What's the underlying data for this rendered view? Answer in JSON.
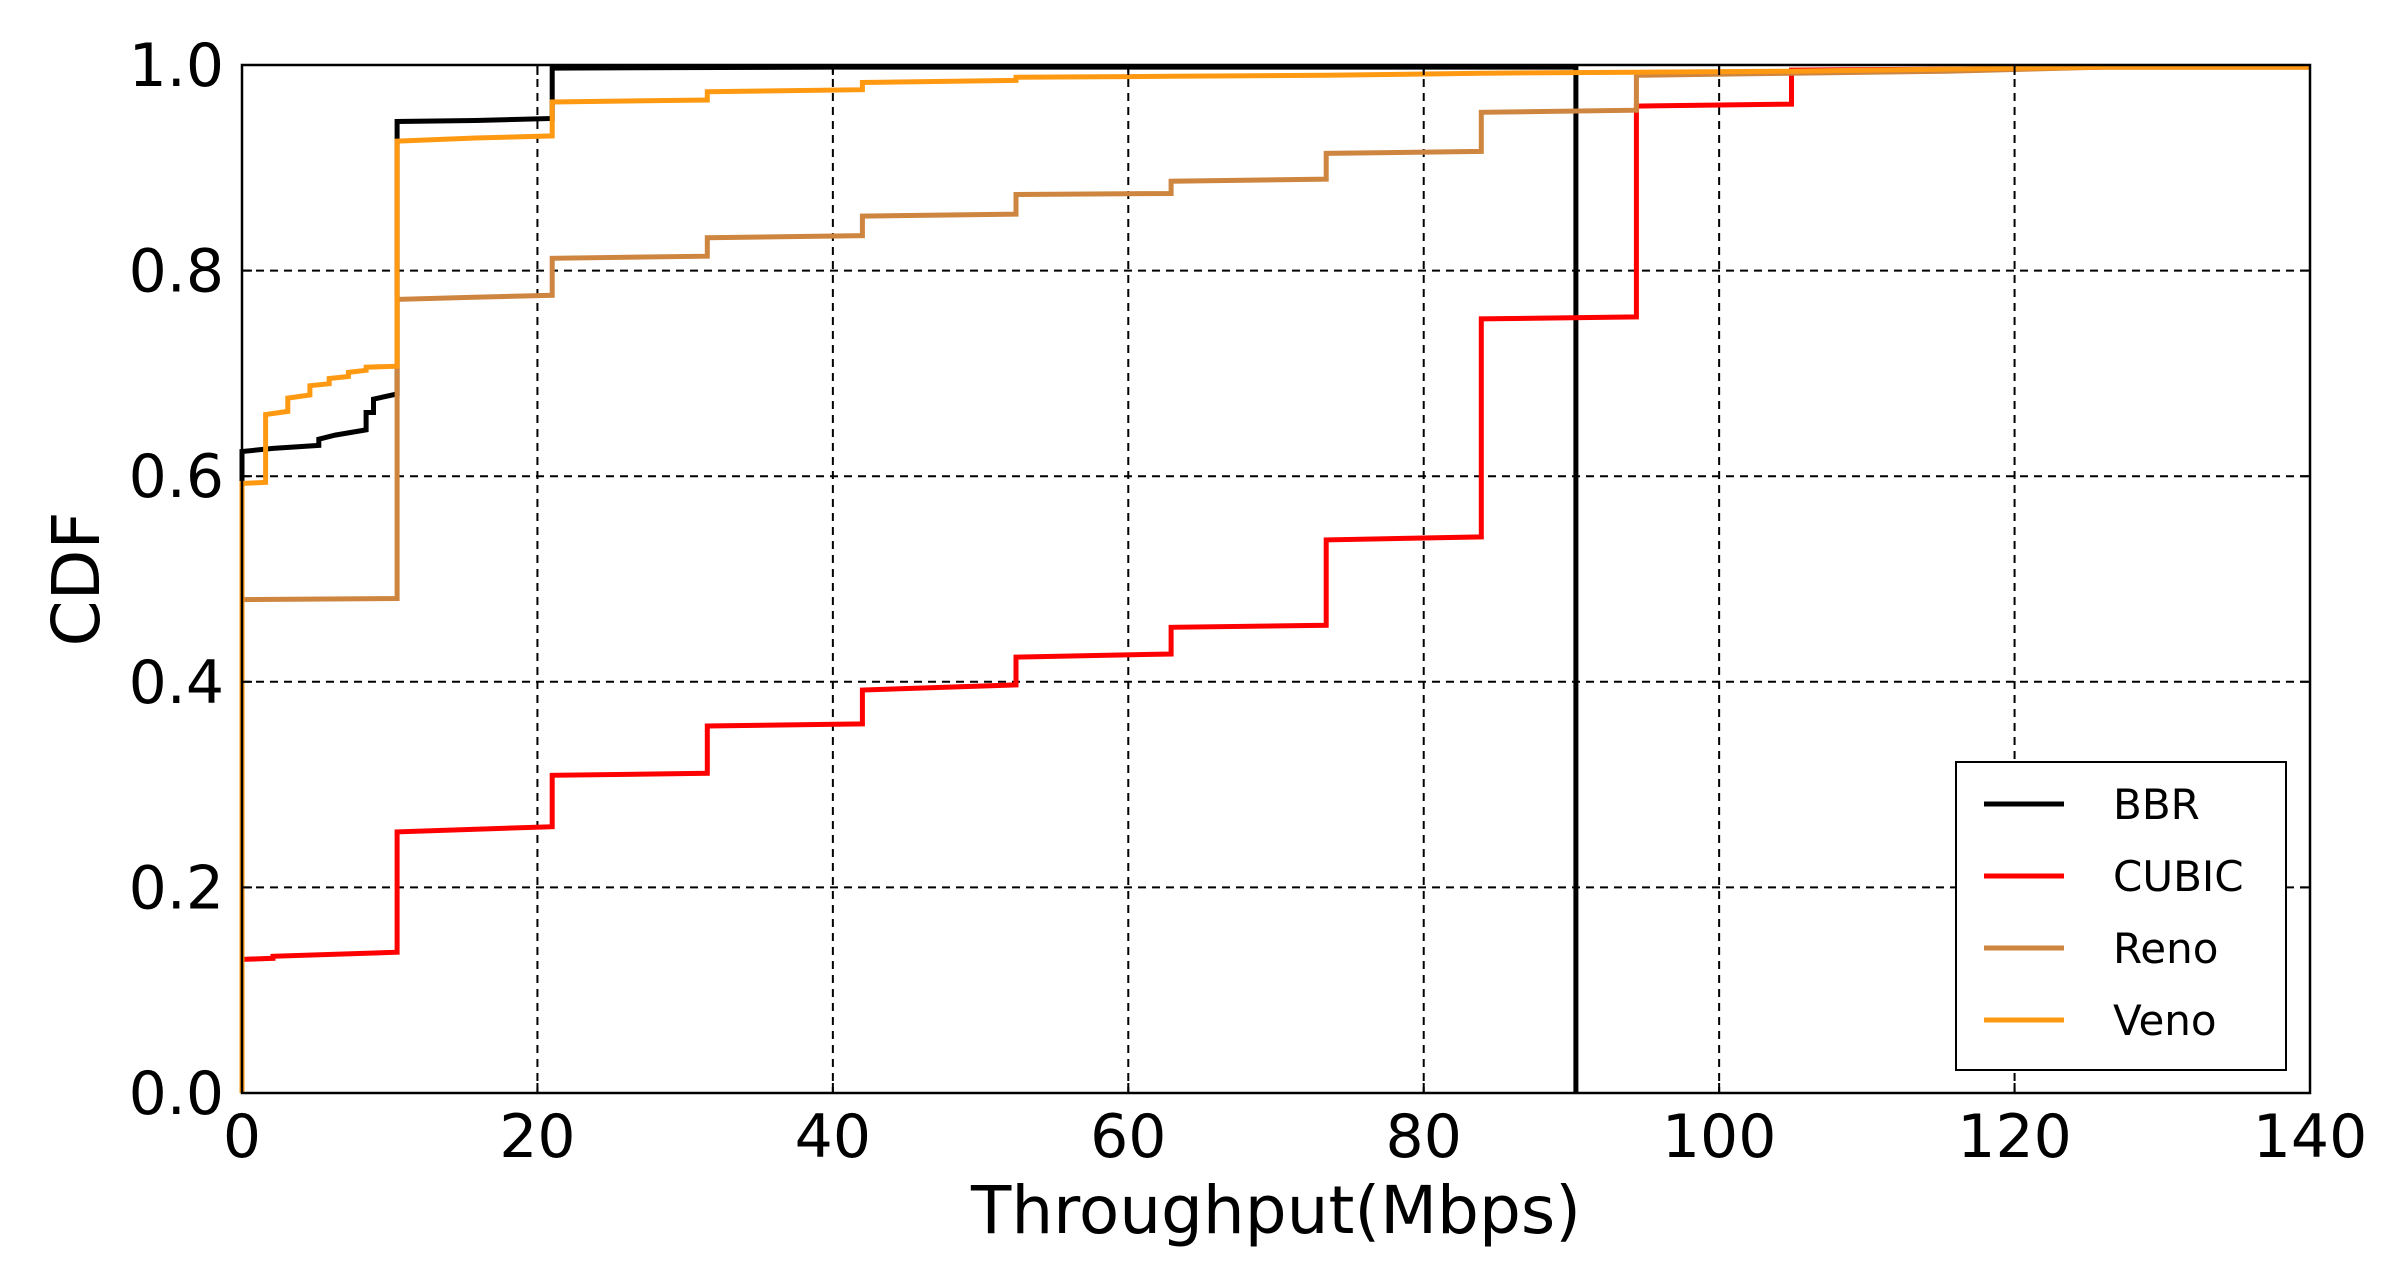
{
  "chart_data": {
    "type": "line",
    "title": "",
    "xlabel": "Throughput(Mbps)",
    "ylabel": "CDF",
    "xlim": [
      0,
      140
    ],
    "ylim": [
      0.0,
      1.0
    ],
    "xticks": [
      0,
      20,
      40,
      60,
      80,
      100,
      120,
      140
    ],
    "yticks": [
      0.0,
      0.2,
      0.4,
      0.6,
      0.8,
      1.0
    ],
    "xtick_labels": [
      "0",
      "20",
      "40",
      "60",
      "80",
      "100",
      "120",
      "140"
    ],
    "ytick_labels": [
      "0.0",
      "0.2",
      "0.4",
      "0.6",
      "0.8",
      "1.0"
    ],
    "grid": true,
    "legend_position": "bottom-right",
    "series": [
      {
        "name": "BBR",
        "color": "#000000",
        "points": [
          [
            0,
            0
          ],
          [
            0,
            0.624
          ],
          [
            2.1,
            0.627
          ],
          [
            5.2,
            0.63
          ],
          [
            5.2,
            0.636
          ],
          [
            6.3,
            0.64
          ],
          [
            8.4,
            0.645
          ],
          [
            8.4,
            0.662
          ],
          [
            8.9,
            0.662
          ],
          [
            8.9,
            0.675
          ],
          [
            10.5,
            0.68
          ],
          [
            10.5,
            0.945
          ],
          [
            15.8,
            0.946
          ],
          [
            21,
            0.948
          ],
          [
            21,
            0.997
          ],
          [
            40,
            0.998
          ],
          [
            90.3,
            0.998
          ],
          [
            90.3,
            0.0
          ]
        ]
      },
      {
        "name": "CUBIC",
        "color": "#ff0000",
        "points": [
          [
            0,
            0
          ],
          [
            0,
            0.13
          ],
          [
            2.1,
            0.131
          ],
          [
            2.1,
            0.133
          ],
          [
            10.5,
            0.137
          ],
          [
            10.5,
            0.254
          ],
          [
            21,
            0.259
          ],
          [
            21,
            0.309
          ],
          [
            31.5,
            0.311
          ],
          [
            31.5,
            0.357
          ],
          [
            42,
            0.359
          ],
          [
            42,
            0.392
          ],
          [
            52.4,
            0.397
          ],
          [
            52.4,
            0.424
          ],
          [
            62.9,
            0.427
          ],
          [
            62.9,
            0.453
          ],
          [
            73.4,
            0.455
          ],
          [
            73.4,
            0.538
          ],
          [
            83.9,
            0.541
          ],
          [
            83.9,
            0.753
          ],
          [
            94.4,
            0.755
          ],
          [
            94.4,
            0.96
          ],
          [
            104.9,
            0.962
          ],
          [
            104.9,
            0.995
          ],
          [
            115.4,
            0.996
          ],
          [
            126,
            0.998
          ],
          [
            140,
            0.998
          ]
        ]
      },
      {
        "name": "Reno",
        "color": "#cd853f",
        "points": [
          [
            0,
            0
          ],
          [
            0,
            0.48
          ],
          [
            10.5,
            0.481
          ],
          [
            10.5,
            0.772
          ],
          [
            15.7,
            0.774
          ],
          [
            21,
            0.776
          ],
          [
            21,
            0.812
          ],
          [
            31.5,
            0.814
          ],
          [
            31.5,
            0.832
          ],
          [
            42,
            0.834
          ],
          [
            42,
            0.853
          ],
          [
            52.4,
            0.855
          ],
          [
            52.4,
            0.874
          ],
          [
            62.9,
            0.875
          ],
          [
            62.9,
            0.887
          ],
          [
            73.4,
            0.889
          ],
          [
            73.4,
            0.914
          ],
          [
            83.9,
            0.916
          ],
          [
            83.9,
            0.954
          ],
          [
            94.4,
            0.956
          ],
          [
            94.4,
            0.99
          ],
          [
            104.9,
            0.992
          ],
          [
            115.4,
            0.994
          ],
          [
            126,
            0.998
          ],
          [
            140,
            0.998
          ]
        ]
      },
      {
        "name": "Veno",
        "color": "#ff9912",
        "points": [
          [
            0,
            0
          ],
          [
            0,
            0.593
          ],
          [
            1.6,
            0.594
          ],
          [
            1.6,
            0.66
          ],
          [
            3.1,
            0.663
          ],
          [
            3.1,
            0.676
          ],
          [
            4.6,
            0.679
          ],
          [
            4.6,
            0.688
          ],
          [
            5.9,
            0.69
          ],
          [
            5.9,
            0.695
          ],
          [
            7.2,
            0.697
          ],
          [
            7.2,
            0.701
          ],
          [
            8.4,
            0.703
          ],
          [
            8.4,
            0.706
          ],
          [
            10.5,
            0.707
          ],
          [
            10.5,
            0.926
          ],
          [
            15.8,
            0.929
          ],
          [
            21,
            0.931
          ],
          [
            21,
            0.964
          ],
          [
            31.5,
            0.966
          ],
          [
            31.5,
            0.974
          ],
          [
            42,
            0.976
          ],
          [
            42,
            0.983
          ],
          [
            52.4,
            0.985
          ],
          [
            52.4,
            0.988
          ],
          [
            62.9,
            0.989
          ],
          [
            73.4,
            0.99
          ],
          [
            83.9,
            0.992
          ],
          [
            94.4,
            0.993
          ],
          [
            104.9,
            0.994
          ],
          [
            115.4,
            0.996
          ],
          [
            126,
            0.998
          ],
          [
            140,
            0.998
          ]
        ]
      }
    ]
  }
}
